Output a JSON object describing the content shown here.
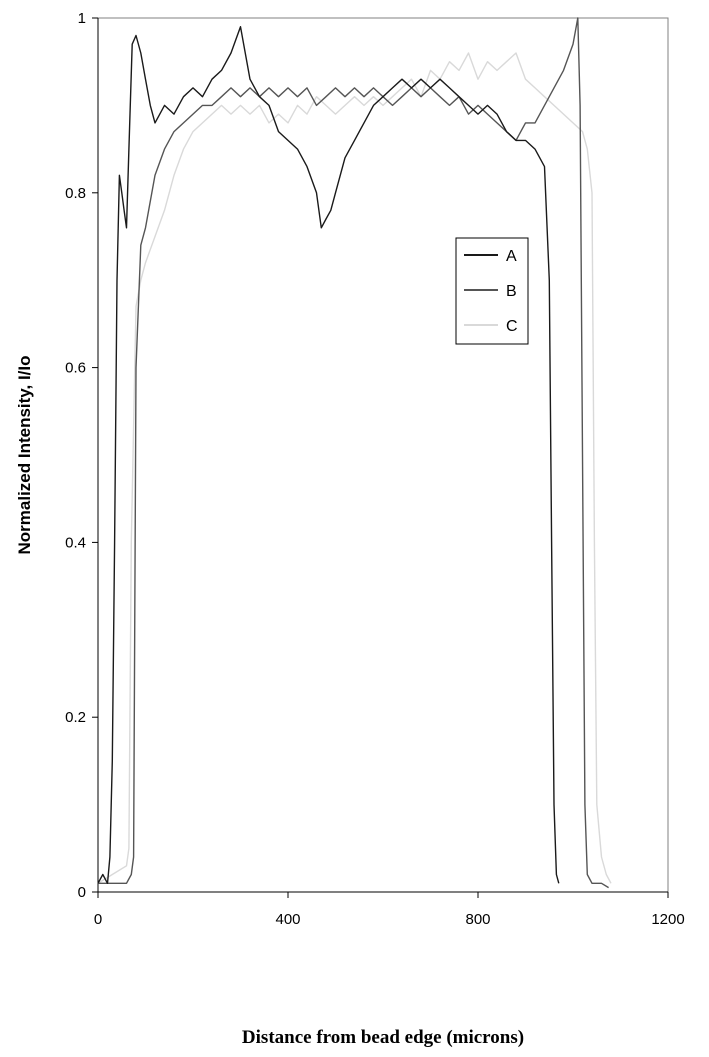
{
  "chart_data": {
    "type": "line",
    "xlabel": "Distance from bead edge (microns)",
    "ylabel": "Normalized Intensity, I/Io",
    "xlim": [
      0,
      1200
    ],
    "ylim": [
      0,
      1
    ],
    "x_ticks": [
      0,
      400,
      800,
      1200
    ],
    "x_tick_labels": [
      "0",
      "400",
      "800",
      "1200"
    ],
    "y_ticks": [
      0,
      0.2,
      0.4,
      0.6,
      0.8,
      1
    ],
    "y_tick_labels": [
      "0",
      "0.2",
      "0.4",
      "0.6",
      "0.8",
      "1"
    ],
    "grid": false,
    "legend_position": "right-center",
    "series": [
      {
        "name": "A",
        "color": "#1a1a1a",
        "points": [
          [
            0,
            0.01
          ],
          [
            10,
            0.02
          ],
          [
            20,
            0.01
          ],
          [
            25,
            0.04
          ],
          [
            30,
            0.15
          ],
          [
            35,
            0.4
          ],
          [
            40,
            0.7
          ],
          [
            45,
            0.82
          ],
          [
            50,
            0.8
          ],
          [
            55,
            0.78
          ],
          [
            60,
            0.76
          ],
          [
            65,
            0.85
          ],
          [
            72,
            0.97
          ],
          [
            80,
            0.98
          ],
          [
            90,
            0.96
          ],
          [
            100,
            0.93
          ],
          [
            110,
            0.9
          ],
          [
            120,
            0.88
          ],
          [
            140,
            0.9
          ],
          [
            160,
            0.89
          ],
          [
            180,
            0.91
          ],
          [
            200,
            0.92
          ],
          [
            220,
            0.91
          ],
          [
            240,
            0.93
          ],
          [
            260,
            0.94
          ],
          [
            280,
            0.96
          ],
          [
            300,
            0.99
          ],
          [
            320,
            0.93
          ],
          [
            340,
            0.91
          ],
          [
            360,
            0.9
          ],
          [
            380,
            0.87
          ],
          [
            400,
            0.86
          ],
          [
            420,
            0.85
          ],
          [
            440,
            0.83
          ],
          [
            460,
            0.8
          ],
          [
            470,
            0.76
          ],
          [
            480,
            0.77
          ],
          [
            490,
            0.78
          ],
          [
            500,
            0.8
          ],
          [
            520,
            0.84
          ],
          [
            540,
            0.86
          ],
          [
            560,
            0.88
          ],
          [
            580,
            0.9
          ],
          [
            600,
            0.91
          ],
          [
            620,
            0.92
          ],
          [
            640,
            0.93
          ],
          [
            660,
            0.92
          ],
          [
            680,
            0.93
          ],
          [
            700,
            0.92
          ],
          [
            720,
            0.93
          ],
          [
            740,
            0.92
          ],
          [
            760,
            0.91
          ],
          [
            780,
            0.9
          ],
          [
            800,
            0.89
          ],
          [
            820,
            0.9
          ],
          [
            840,
            0.89
          ],
          [
            860,
            0.87
          ],
          [
            880,
            0.86
          ],
          [
            900,
            0.86
          ],
          [
            920,
            0.85
          ],
          [
            940,
            0.83
          ],
          [
            950,
            0.7
          ],
          [
            955,
            0.4
          ],
          [
            960,
            0.1
          ],
          [
            965,
            0.02
          ],
          [
            970,
            0.01
          ]
        ]
      },
      {
        "name": "B",
        "color": "#555555",
        "points": [
          [
            0,
            0.01
          ],
          [
            20,
            0.01
          ],
          [
            40,
            0.01
          ],
          [
            60,
            0.01
          ],
          [
            70,
            0.02
          ],
          [
            75,
            0.04
          ],
          [
            80,
            0.6
          ],
          [
            90,
            0.74
          ],
          [
            100,
            0.76
          ],
          [
            120,
            0.82
          ],
          [
            140,
            0.85
          ],
          [
            160,
            0.87
          ],
          [
            180,
            0.88
          ],
          [
            200,
            0.89
          ],
          [
            220,
            0.9
          ],
          [
            240,
            0.9
          ],
          [
            260,
            0.91
          ],
          [
            280,
            0.92
          ],
          [
            300,
            0.91
          ],
          [
            320,
            0.92
          ],
          [
            340,
            0.91
          ],
          [
            360,
            0.92
          ],
          [
            380,
            0.91
          ],
          [
            400,
            0.92
          ],
          [
            420,
            0.91
          ],
          [
            440,
            0.92
          ],
          [
            460,
            0.9
          ],
          [
            480,
            0.91
          ],
          [
            500,
            0.92
          ],
          [
            520,
            0.91
          ],
          [
            540,
            0.92
          ],
          [
            560,
            0.91
          ],
          [
            580,
            0.92
          ],
          [
            600,
            0.91
          ],
          [
            620,
            0.9
          ],
          [
            640,
            0.91
          ],
          [
            660,
            0.92
          ],
          [
            680,
            0.91
          ],
          [
            700,
            0.92
          ],
          [
            720,
            0.91
          ],
          [
            740,
            0.9
          ],
          [
            760,
            0.91
          ],
          [
            780,
            0.89
          ],
          [
            800,
            0.9
          ],
          [
            820,
            0.89
          ],
          [
            840,
            0.88
          ],
          [
            860,
            0.87
          ],
          [
            880,
            0.86
          ],
          [
            900,
            0.88
          ],
          [
            920,
            0.88
          ],
          [
            940,
            0.9
          ],
          [
            960,
            0.92
          ],
          [
            980,
            0.94
          ],
          [
            1000,
            0.97
          ],
          [
            1010,
            1.0
          ],
          [
            1015,
            0.9
          ],
          [
            1020,
            0.5
          ],
          [
            1025,
            0.1
          ],
          [
            1030,
            0.02
          ],
          [
            1040,
            0.01
          ],
          [
            1060,
            0.01
          ],
          [
            1075,
            0.005
          ]
        ]
      },
      {
        "name": "C",
        "color": "#d9d9d9",
        "points": [
          [
            0,
            0.01
          ],
          [
            30,
            0.02
          ],
          [
            60,
            0.03
          ],
          [
            65,
            0.05
          ],
          [
            70,
            0.4
          ],
          [
            80,
            0.67
          ],
          [
            90,
            0.7
          ],
          [
            100,
            0.72
          ],
          [
            120,
            0.75
          ],
          [
            140,
            0.78
          ],
          [
            160,
            0.82
          ],
          [
            180,
            0.85
          ],
          [
            200,
            0.87
          ],
          [
            220,
            0.88
          ],
          [
            240,
            0.89
          ],
          [
            260,
            0.9
          ],
          [
            280,
            0.89
          ],
          [
            300,
            0.9
          ],
          [
            320,
            0.89
          ],
          [
            340,
            0.9
          ],
          [
            360,
            0.88
          ],
          [
            380,
            0.89
          ],
          [
            400,
            0.88
          ],
          [
            420,
            0.9
          ],
          [
            440,
            0.89
          ],
          [
            460,
            0.91
          ],
          [
            480,
            0.9
          ],
          [
            500,
            0.89
          ],
          [
            520,
            0.9
          ],
          [
            540,
            0.91
          ],
          [
            560,
            0.9
          ],
          [
            580,
            0.91
          ],
          [
            600,
            0.9
          ],
          [
            620,
            0.91
          ],
          [
            640,
            0.92
          ],
          [
            660,
            0.93
          ],
          [
            680,
            0.91
          ],
          [
            700,
            0.94
          ],
          [
            720,
            0.93
          ],
          [
            740,
            0.95
          ],
          [
            760,
            0.94
          ],
          [
            780,
            0.96
          ],
          [
            800,
            0.93
          ],
          [
            820,
            0.95
          ],
          [
            840,
            0.94
          ],
          [
            860,
            0.95
          ],
          [
            880,
            0.96
          ],
          [
            900,
            0.93
          ],
          [
            920,
            0.92
          ],
          [
            940,
            0.91
          ],
          [
            960,
            0.9
          ],
          [
            980,
            0.89
          ],
          [
            1000,
            0.88
          ],
          [
            1020,
            0.87
          ],
          [
            1030,
            0.85
          ],
          [
            1040,
            0.8
          ],
          [
            1045,
            0.4
          ],
          [
            1050,
            0.1
          ],
          [
            1060,
            0.04
          ],
          [
            1070,
            0.02
          ],
          [
            1080,
            0.01
          ]
        ]
      }
    ]
  }
}
